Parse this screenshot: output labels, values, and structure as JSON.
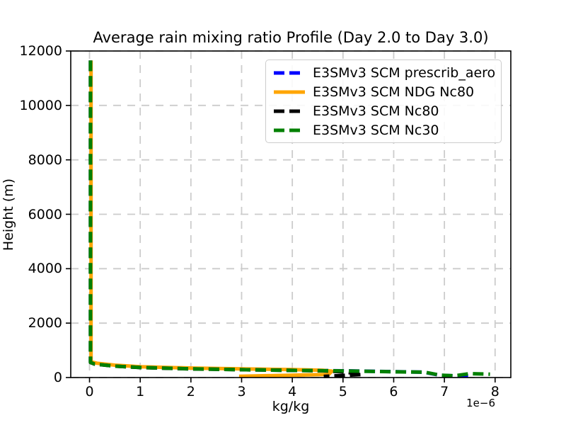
{
  "figure": {
    "background": "#ffffff",
    "note": "static matplotlib-style figure, no interactive widgets visible"
  },
  "chart_data": {
    "type": "line",
    "title": "Average rain mixing ratio Profile (Day 2.0 to Day 3.0)",
    "xlabel": "kg/kg",
    "ylabel": "Height (m)",
    "x_offset_text": "1e−6",
    "x_unit_scale": "values are ×1e-6 kg/kg",
    "xlim": [
      -0.37,
      8.31
    ],
    "ylim": [
      0,
      12000
    ],
    "x_ticks": [
      0,
      1,
      2,
      3,
      4,
      5,
      6,
      7,
      8
    ],
    "y_ticks": [
      0,
      2000,
      4000,
      6000,
      8000,
      10000,
      12000
    ],
    "grid": true,
    "grid_color": "#cccccc",
    "axes_edge_color": "#000000",
    "legend_position": "upper right",
    "series": [
      {
        "name": "E3SMv3 SCM prescrib_aero",
        "color": "#0000ff",
        "line_style": "dashed",
        "points": [
          [
            0.02,
            11650
          ],
          [
            0.02,
            560
          ],
          [
            0.1,
            500
          ],
          [
            0.5,
            425
          ],
          [
            1.0,
            372
          ],
          [
            2.0,
            322
          ],
          [
            3.0,
            292
          ],
          [
            4.0,
            266
          ],
          [
            5.0,
            246
          ],
          [
            6.0,
            216
          ],
          [
            6.6,
            196
          ],
          [
            6.9,
            85
          ],
          [
            7.2,
            62
          ],
          [
            7.5,
            58
          ]
        ]
      },
      {
        "name": "E3SMv3 SCM NDG Nc80",
        "color": "#ffa500",
        "line_style": "solid",
        "points": [
          [
            0.03,
            11650
          ],
          [
            0.03,
            575
          ],
          [
            0.15,
            525
          ],
          [
            0.5,
            455
          ],
          [
            1.0,
            398
          ],
          [
            2.0,
            348
          ],
          [
            3.0,
            318
          ],
          [
            4.0,
            292
          ],
          [
            4.6,
            268
          ],
          [
            4.78,
            235
          ],
          [
            4.72,
            115
          ],
          [
            2.95,
            48
          ]
        ]
      },
      {
        "name": "E3SMv3 SCM Nc80",
        "color": "#000000",
        "line_style": "dashed",
        "points": [
          [
            0.02,
            11650
          ],
          [
            0.02,
            552
          ],
          [
            0.1,
            492
          ],
          [
            0.5,
            418
          ],
          [
            1.0,
            366
          ],
          [
            2.0,
            318
          ],
          [
            3.0,
            288
          ],
          [
            4.0,
            262
          ],
          [
            4.6,
            246
          ],
          [
            5.0,
            212
          ],
          [
            5.38,
            112
          ],
          [
            4.62,
            42
          ]
        ]
      },
      {
        "name": "E3SMv3 SCM Nc30",
        "color": "#008000",
        "line_style": "dashed",
        "points": [
          [
            0.02,
            11650
          ],
          [
            0.02,
            556
          ],
          [
            0.1,
            496
          ],
          [
            0.5,
            420
          ],
          [
            1.0,
            369
          ],
          [
            2.0,
            320
          ],
          [
            3.0,
            290
          ],
          [
            4.0,
            264
          ],
          [
            5.0,
            244
          ],
          [
            6.0,
            214
          ],
          [
            6.62,
            196
          ],
          [
            6.92,
            86
          ],
          [
            7.2,
            66
          ],
          [
            7.5,
            142
          ],
          [
            7.9,
            122
          ]
        ]
      }
    ]
  }
}
